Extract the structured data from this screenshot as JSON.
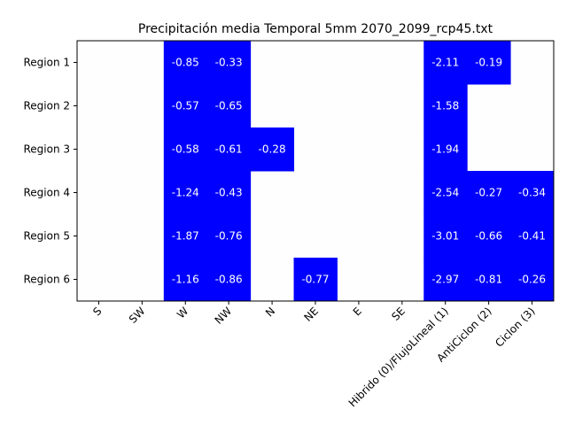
{
  "chart_data": {
    "type": "heatmap",
    "title": "Precipitación media Temporal 5mm 2070_2099_rcp45.txt",
    "columns": [
      "S",
      "SW",
      "W",
      "NW",
      "N",
      "NE",
      "E",
      "SE",
      "Hibrido (0)/FlujoLineal (1)",
      "AntiCiclon (2)",
      "Ciclon (3)"
    ],
    "rows": [
      "Region 1",
      "Region 2",
      "Region 3",
      "Region 4",
      "Region 5",
      "Region 6"
    ],
    "values": [
      [
        null,
        null,
        -0.85,
        -0.33,
        null,
        null,
        null,
        null,
        -2.11,
        -0.19,
        null
      ],
      [
        null,
        null,
        -0.57,
        -0.65,
        null,
        null,
        null,
        null,
        -1.58,
        null,
        null
      ],
      [
        null,
        null,
        -0.58,
        -0.61,
        -0.28,
        null,
        null,
        null,
        -1.94,
        null,
        null
      ],
      [
        null,
        null,
        -1.24,
        -0.43,
        null,
        null,
        null,
        null,
        -2.54,
        -0.27,
        -0.34
      ],
      [
        null,
        null,
        -1.87,
        -0.76,
        null,
        null,
        null,
        null,
        -3.01,
        -0.66,
        -0.41
      ],
      [
        null,
        null,
        -1.16,
        -0.86,
        null,
        -0.77,
        null,
        null,
        -2.97,
        -0.81,
        -0.26
      ]
    ],
    "cell_labels": [
      [
        "",
        "",
        "-0.85",
        "-0.33",
        "",
        "",
        "",
        "",
        "-2.11",
        "-0.19",
        ""
      ],
      [
        "",
        "",
        "-0.57",
        "-0.65",
        "",
        "",
        "",
        "",
        "-1.58",
        "",
        ""
      ],
      [
        "",
        "",
        "-0.58",
        "-0.61",
        "-0.28",
        "",
        "",
        "",
        "-1.94",
        "",
        ""
      ],
      [
        "",
        "",
        "-1.24",
        "-0.43",
        "",
        "",
        "",
        "",
        "-2.54",
        "-0.27",
        "-0.34"
      ],
      [
        "",
        "",
        "-1.87",
        "-0.76",
        "",
        "",
        "",
        "",
        "-3.01",
        "-0.66",
        "-0.41"
      ],
      [
        "",
        "",
        "-1.16",
        "-0.86",
        "",
        "-0.77",
        "",
        "",
        "-2.97",
        "-0.81",
        "-0.26"
      ]
    ],
    "filled_color": "#0000ff",
    "empty_color": "#fefefe",
    "label_color": "#ffffff",
    "grid": false,
    "legend": "none"
  }
}
